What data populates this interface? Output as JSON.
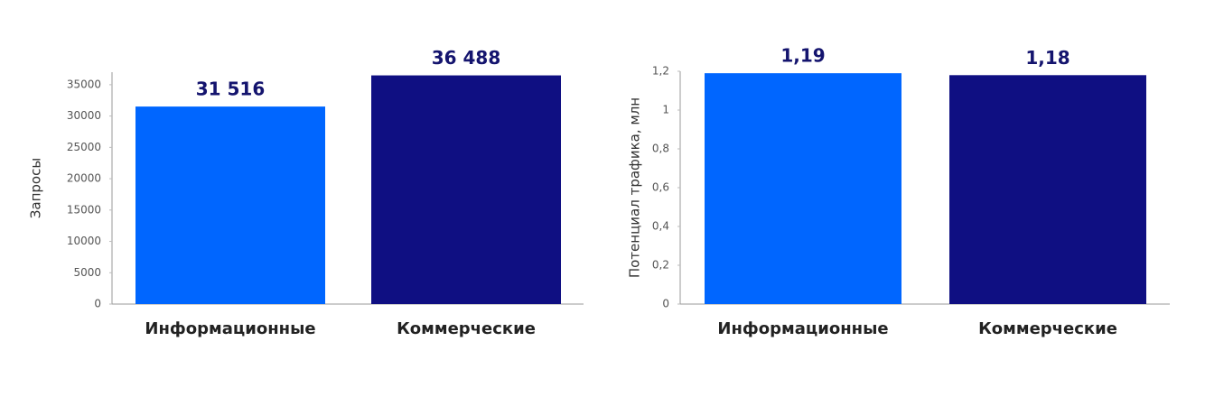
{
  "chart_data": [
    {
      "type": "bar",
      "y_label": "Запросы",
      "categories": [
        "Информационные",
        "Коммерческие"
      ],
      "values": [
        31516,
        36488
      ],
      "value_labels": [
        "31 516",
        "36 488"
      ],
      "colors": [
        "#0066ff",
        "#0f0f82"
      ],
      "ylim": [
        0,
        37000
      ],
      "yticks": [
        0,
        5000,
        10000,
        15000,
        20000,
        25000,
        30000,
        35000
      ]
    },
    {
      "type": "bar",
      "y_label": "Потенциал трафика, млн",
      "categories": [
        "Информационные",
        "Коммерческие"
      ],
      "values": [
        1.19,
        1.18
      ],
      "value_labels": [
        "1,19",
        "1,18"
      ],
      "colors": [
        "#0066ff",
        "#0f0f82"
      ],
      "ylim": [
        0,
        1.2
      ],
      "yticks": [
        0,
        {
          "value": 0.2,
          "label": "0,2"
        },
        {
          "value": 0.4,
          "label": "0,4"
        },
        {
          "value": 0.6,
          "label": "0,6"
        },
        {
          "value": 0.8,
          "label": "0,8"
        },
        1,
        {
          "value": 1.2,
          "label": "1,2"
        }
      ]
    }
  ]
}
